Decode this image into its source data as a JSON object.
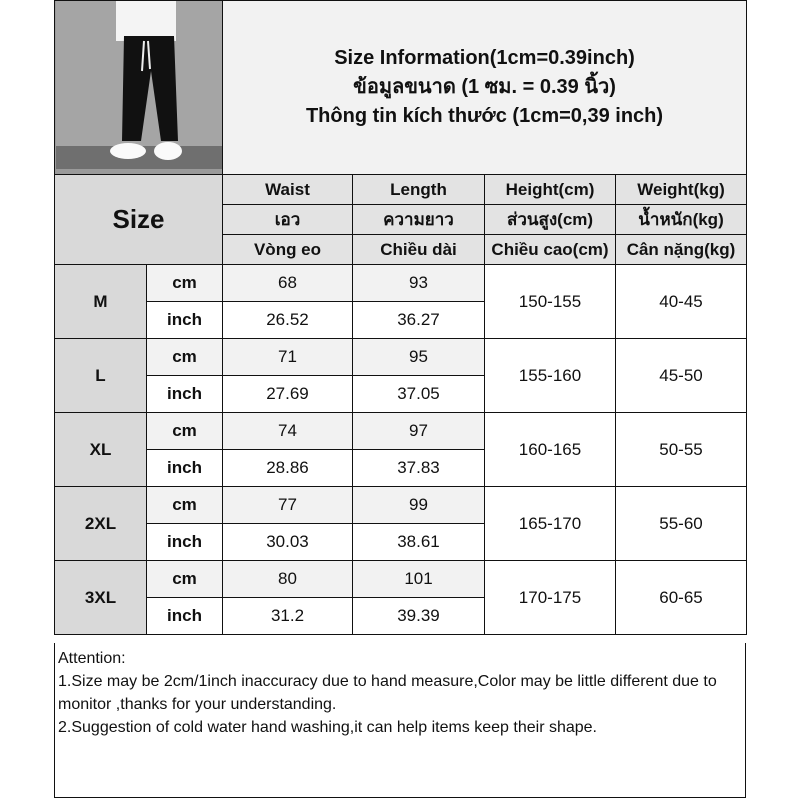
{
  "title_lines": [
    "Size Information(1cm=0.39inch)",
    "ข้อมูลขนาด (1 ซม. = 0.39 นิ้ว)",
    "Thông tin kích thước (1cm=0,39 inch)"
  ],
  "size_label": "Size",
  "headers": [
    [
      "Waist",
      "Length",
      "Height(cm)",
      "Weight(kg)"
    ],
    [
      "เอว",
      "ความยาว",
      "ส่วนสูง(cm)",
      "น้ำหนัก(kg)"
    ],
    [
      "Vòng eo",
      "Chiều dài",
      "Chiều cao(cm)",
      "Cân nặng(kg)"
    ]
  ],
  "unit_cm": "cm",
  "unit_inch": "inch",
  "rows": [
    {
      "size": "M",
      "cm": [
        "68",
        "93"
      ],
      "inch": [
        "26.52",
        "36.27"
      ],
      "height": "150-155",
      "weight": "40-45"
    },
    {
      "size": "L",
      "cm": [
        "71",
        "95"
      ],
      "inch": [
        "27.69",
        "37.05"
      ],
      "height": "155-160",
      "weight": "45-50"
    },
    {
      "size": "XL",
      "cm": [
        "74",
        "97"
      ],
      "inch": [
        "28.86",
        "37.83"
      ],
      "height": "160-165",
      "weight": "50-55"
    },
    {
      "size": "2XL",
      "cm": [
        "77",
        "99"
      ],
      "inch": [
        "30.03",
        "38.61"
      ],
      "height": "165-170",
      "weight": "55-60"
    },
    {
      "size": "3XL",
      "cm": [
        "80",
        "101"
      ],
      "inch": [
        "31.2",
        "39.39"
      ],
      "height": "170-175",
      "weight": "60-65"
    }
  ],
  "notes": [
    "Attention:",
    "1.Size may be 2cm/1inch inaccuracy due to hand measure,Color may be little different due to monitor ,thanks for your understanding.",
    "2.Suggestion of cold water hand washing,it can help items keep their shape."
  ]
}
